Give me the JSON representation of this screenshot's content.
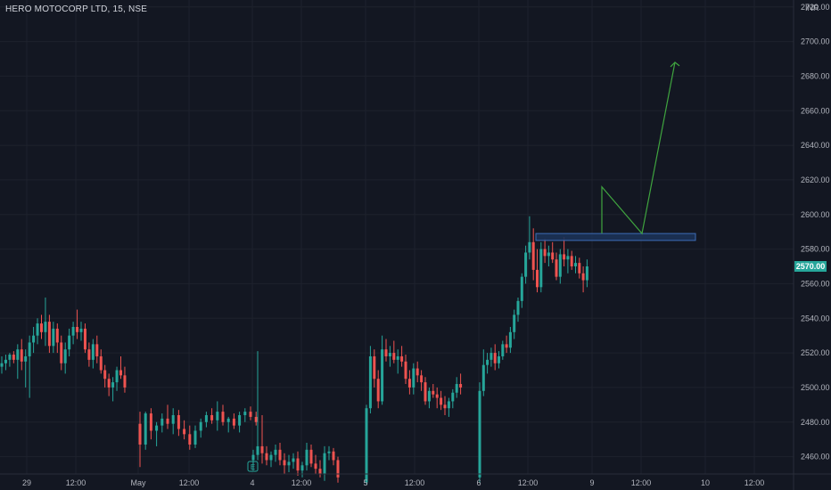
{
  "header": {
    "title": "HERO MOTOCORP LTD, 15, NSE"
  },
  "price_axis": {
    "currency": "INR",
    "ticks": [
      "2720.00",
      "2700.00",
      "2680.00",
      "2660.00",
      "2640.00",
      "2620.00",
      "2600.00",
      "2580.00",
      "2560.00",
      "2540.00",
      "2520.00",
      "2500.00",
      "2480.00",
      "2460.00"
    ],
    "last_price_label": "2570.00",
    "last_price": 2570
  },
  "time_axis": {
    "ticks": [
      "29",
      "12:00",
      "May",
      "12:00",
      "4",
      "12:00",
      "5",
      "12:00",
      "6",
      "12:00",
      "9",
      "12:00",
      "10",
      "12:00"
    ]
  },
  "event_marker": {
    "label": "E"
  },
  "colors": {
    "background": "#131722",
    "up": "#26a69a",
    "down": "#ef5350",
    "grid": "#1e222d",
    "projection": "#3fa43f",
    "zone_fill": "#1c3257",
    "zone_stroke": "#3c6cb7",
    "axis_text": "#b2b5be",
    "last_price_bg": "#26a69a"
  },
  "chart_data": {
    "type": "candlestick",
    "ylim": [
      2450,
      2724
    ],
    "grid": true,
    "candles": [
      {
        "o": 2512,
        "h": 2518,
        "l": 2508,
        "c": 2514
      },
      {
        "o": 2514,
        "h": 2519,
        "l": 2510,
        "c": 2516
      },
      {
        "o": 2516,
        "h": 2520,
        "l": 2512,
        "c": 2519
      },
      {
        "o": 2519,
        "h": 2521,
        "l": 2514,
        "c": 2516
      },
      {
        "o": 2516,
        "h": 2525,
        "l": 2505,
        "c": 2522
      },
      {
        "o": 2522,
        "h": 2528,
        "l": 2510,
        "c": 2515
      },
      {
        "o": 2515,
        "h": 2522,
        "l": 2500,
        "c": 2518
      },
      {
        "o": 2518,
        "h": 2530,
        "l": 2494,
        "c": 2526
      },
      {
        "o": 2526,
        "h": 2535,
        "l": 2520,
        "c": 2530
      },
      {
        "o": 2530,
        "h": 2540,
        "l": 2525,
        "c": 2537
      },
      {
        "o": 2537,
        "h": 2542,
        "l": 2528,
        "c": 2532
      },
      {
        "o": 2532,
        "h": 2552,
        "l": 2524,
        "c": 2538
      },
      {
        "o": 2538,
        "h": 2542,
        "l": 2520,
        "c": 2524
      },
      {
        "o": 2524,
        "h": 2538,
        "l": 2520,
        "c": 2534
      },
      {
        "o": 2534,
        "h": 2537,
        "l": 2520,
        "c": 2526
      },
      {
        "o": 2526,
        "h": 2530,
        "l": 2510,
        "c": 2514
      },
      {
        "o": 2514,
        "h": 2526,
        "l": 2508,
        "c": 2522
      },
      {
        "o": 2522,
        "h": 2534,
        "l": 2518,
        "c": 2530
      },
      {
        "o": 2530,
        "h": 2538,
        "l": 2525,
        "c": 2535
      },
      {
        "o": 2535,
        "h": 2545,
        "l": 2528,
        "c": 2532
      },
      {
        "o": 2532,
        "h": 2538,
        "l": 2527,
        "c": 2534
      },
      {
        "o": 2534,
        "h": 2537,
        "l": 2520,
        "c": 2522
      },
      {
        "o": 2522,
        "h": 2526,
        "l": 2512,
        "c": 2516
      },
      {
        "o": 2516,
        "h": 2528,
        "l": 2511,
        "c": 2525
      },
      {
        "o": 2525,
        "h": 2530,
        "l": 2514,
        "c": 2518
      },
      {
        "o": 2518,
        "h": 2522,
        "l": 2508,
        "c": 2510
      },
      {
        "o": 2510,
        "h": 2513,
        "l": 2500,
        "c": 2505
      },
      {
        "o": 2505,
        "h": 2508,
        "l": 2495,
        "c": 2500
      },
      {
        "o": 2500,
        "h": 2506,
        "l": 2492,
        "c": 2503
      },
      {
        "o": 2503,
        "h": 2512,
        "l": 2498,
        "c": 2510
      },
      {
        "o": 2510,
        "h": 2518,
        "l": 2505,
        "c": 2507
      },
      {
        "o": 2507,
        "h": 2512,
        "l": 2497,
        "c": 2500
      },
      {
        "o": 2479,
        "h": 2486,
        "l": 2454,
        "c": 2467
      },
      {
        "o": 2467,
        "h": 2486,
        "l": 2464,
        "c": 2485
      },
      {
        "o": 2485,
        "h": 2488,
        "l": 2470,
        "c": 2475
      },
      {
        "o": 2475,
        "h": 2480,
        "l": 2466,
        "c": 2478
      },
      {
        "o": 2478,
        "h": 2485,
        "l": 2474,
        "c": 2482
      },
      {
        "o": 2482,
        "h": 2490,
        "l": 2476,
        "c": 2479
      },
      {
        "o": 2479,
        "h": 2488,
        "l": 2473,
        "c": 2484
      },
      {
        "o": 2484,
        "h": 2487,
        "l": 2472,
        "c": 2476
      },
      {
        "o": 2476,
        "h": 2481,
        "l": 2470,
        "c": 2473
      },
      {
        "o": 2473,
        "h": 2478,
        "l": 2464,
        "c": 2467
      },
      {
        "o": 2467,
        "h": 2478,
        "l": 2465,
        "c": 2475
      },
      {
        "o": 2475,
        "h": 2482,
        "l": 2471,
        "c": 2480
      },
      {
        "o": 2480,
        "h": 2486,
        "l": 2477,
        "c": 2484
      },
      {
        "o": 2484,
        "h": 2488,
        "l": 2479,
        "c": 2481
      },
      {
        "o": 2481,
        "h": 2492,
        "l": 2475,
        "c": 2486
      },
      {
        "o": 2486,
        "h": 2490,
        "l": 2478,
        "c": 2480
      },
      {
        "o": 2480,
        "h": 2483,
        "l": 2474,
        "c": 2482
      },
      {
        "o": 2482,
        "h": 2485,
        "l": 2476,
        "c": 2478
      },
      {
        "o": 2478,
        "h": 2486,
        "l": 2474,
        "c": 2484
      },
      {
        "o": 2484,
        "h": 2488,
        "l": 2480,
        "c": 2486
      },
      {
        "o": 2486,
        "h": 2489,
        "l": 2481,
        "c": 2483
      },
      {
        "o": 2483,
        "h": 2486,
        "l": 2478,
        "c": 2480
      },
      {
        "o": 2458,
        "h": 2464,
        "l": 2452,
        "c": 2461
      },
      {
        "o": 2461,
        "h": 2521,
        "l": 2458,
        "c": 2466
      },
      {
        "o": 2466,
        "h": 2484,
        "l": 2456,
        "c": 2462
      },
      {
        "o": 2462,
        "h": 2466,
        "l": 2455,
        "c": 2458
      },
      {
        "o": 2458,
        "h": 2463,
        "l": 2454,
        "c": 2461
      },
      {
        "o": 2461,
        "h": 2467,
        "l": 2457,
        "c": 2464
      },
      {
        "o": 2464,
        "h": 2468,
        "l": 2455,
        "c": 2458
      },
      {
        "o": 2458,
        "h": 2462,
        "l": 2450,
        "c": 2455
      },
      {
        "o": 2455,
        "h": 2461,
        "l": 2451,
        "c": 2457
      },
      {
        "o": 2457,
        "h": 2462,
        "l": 2453,
        "c": 2459
      },
      {
        "o": 2459,
        "h": 2463,
        "l": 2449,
        "c": 2452
      },
      {
        "o": 2452,
        "h": 2457,
        "l": 2448,
        "c": 2455
      },
      {
        "o": 2455,
        "h": 2468,
        "l": 2452,
        "c": 2464
      },
      {
        "o": 2464,
        "h": 2467,
        "l": 2454,
        "c": 2456
      },
      {
        "o": 2456,
        "h": 2461,
        "l": 2450,
        "c": 2453
      },
      {
        "o": 2453,
        "h": 2458,
        "l": 2448,
        "c": 2450
      },
      {
        "o": 2450,
        "h": 2466,
        "l": 2446,
        "c": 2462
      },
      {
        "o": 2462,
        "h": 2466,
        "l": 2458,
        "c": 2463
      },
      {
        "o": 2463,
        "h": 2465,
        "l": 2455,
        "c": 2458
      },
      {
        "o": 2458,
        "h": 2460,
        "l": 2445,
        "c": 2448
      },
      {
        "o": 2445,
        "h": 2490,
        "l": 2444,
        "c": 2488
      },
      {
        "o": 2488,
        "h": 2524,
        "l": 2485,
        "c": 2518
      },
      {
        "o": 2518,
        "h": 2522,
        "l": 2500,
        "c": 2505
      },
      {
        "o": 2505,
        "h": 2510,
        "l": 2488,
        "c": 2492
      },
      {
        "o": 2492,
        "h": 2530,
        "l": 2490,
        "c": 2522
      },
      {
        "o": 2522,
        "h": 2528,
        "l": 2515,
        "c": 2518
      },
      {
        "o": 2518,
        "h": 2524,
        "l": 2512,
        "c": 2520
      },
      {
        "o": 2520,
        "h": 2527,
        "l": 2514,
        "c": 2516
      },
      {
        "o": 2516,
        "h": 2522,
        "l": 2508,
        "c": 2518
      },
      {
        "o": 2518,
        "h": 2524,
        "l": 2512,
        "c": 2515
      },
      {
        "o": 2515,
        "h": 2519,
        "l": 2502,
        "c": 2505
      },
      {
        "o": 2505,
        "h": 2510,
        "l": 2496,
        "c": 2500
      },
      {
        "o": 2500,
        "h": 2514,
        "l": 2496,
        "c": 2511
      },
      {
        "o": 2511,
        "h": 2515,
        "l": 2503,
        "c": 2507
      },
      {
        "o": 2507,
        "h": 2510,
        "l": 2498,
        "c": 2503
      },
      {
        "o": 2503,
        "h": 2506,
        "l": 2490,
        "c": 2492
      },
      {
        "o": 2492,
        "h": 2500,
        "l": 2488,
        "c": 2498
      },
      {
        "o": 2498,
        "h": 2502,
        "l": 2494,
        "c": 2496
      },
      {
        "o": 2496,
        "h": 2500,
        "l": 2488,
        "c": 2494
      },
      {
        "o": 2494,
        "h": 2498,
        "l": 2487,
        "c": 2490
      },
      {
        "o": 2490,
        "h": 2495,
        "l": 2484,
        "c": 2488
      },
      {
        "o": 2488,
        "h": 2494,
        "l": 2483,
        "c": 2492
      },
      {
        "o": 2492,
        "h": 2499,
        "l": 2488,
        "c": 2497
      },
      {
        "o": 2497,
        "h": 2506,
        "l": 2494,
        "c": 2502
      },
      {
        "o": 2502,
        "h": 2508,
        "l": 2496,
        "c": 2500
      },
      {
        "o": 2448,
        "h": 2503,
        "l": 2445,
        "c": 2498
      },
      {
        "o": 2498,
        "h": 2522,
        "l": 2495,
        "c": 2513
      },
      {
        "o": 2513,
        "h": 2520,
        "l": 2508,
        "c": 2516
      },
      {
        "o": 2516,
        "h": 2523,
        "l": 2512,
        "c": 2520
      },
      {
        "o": 2520,
        "h": 2525,
        "l": 2510,
        "c": 2514
      },
      {
        "o": 2514,
        "h": 2521,
        "l": 2511,
        "c": 2518
      },
      {
        "o": 2518,
        "h": 2527,
        "l": 2516,
        "c": 2525
      },
      {
        "o": 2525,
        "h": 2530,
        "l": 2520,
        "c": 2523
      },
      {
        "o": 2523,
        "h": 2535,
        "l": 2520,
        "c": 2532
      },
      {
        "o": 2532,
        "h": 2545,
        "l": 2528,
        "c": 2542
      },
      {
        "o": 2542,
        "h": 2552,
        "l": 2538,
        "c": 2550
      },
      {
        "o": 2550,
        "h": 2566,
        "l": 2546,
        "c": 2564
      },
      {
        "o": 2564,
        "h": 2582,
        "l": 2560,
        "c": 2578
      },
      {
        "o": 2578,
        "h": 2599,
        "l": 2574,
        "c": 2584
      },
      {
        "o": 2584,
        "h": 2592,
        "l": 2562,
        "c": 2568
      },
      {
        "o": 2568,
        "h": 2580,
        "l": 2555,
        "c": 2558
      },
      {
        "o": 2558,
        "h": 2584,
        "l": 2555,
        "c": 2580
      },
      {
        "o": 2580,
        "h": 2586,
        "l": 2572,
        "c": 2576
      },
      {
        "o": 2576,
        "h": 2582,
        "l": 2570,
        "c": 2578
      },
      {
        "o": 2578,
        "h": 2584,
        "l": 2572,
        "c": 2574
      },
      {
        "o": 2574,
        "h": 2578,
        "l": 2562,
        "c": 2564
      },
      {
        "o": 2564,
        "h": 2580,
        "l": 2560,
        "c": 2577
      },
      {
        "o": 2577,
        "h": 2587,
        "l": 2570,
        "c": 2574
      },
      {
        "o": 2574,
        "h": 2580,
        "l": 2566,
        "c": 2576
      },
      {
        "o": 2576,
        "h": 2579,
        "l": 2568,
        "c": 2570
      },
      {
        "o": 2570,
        "h": 2576,
        "l": 2566,
        "c": 2572
      },
      {
        "o": 2572,
        "h": 2575,
        "l": 2563,
        "c": 2566
      },
      {
        "o": 2566,
        "h": 2570,
        "l": 2555,
        "c": 2562
      },
      {
        "o": 2562,
        "h": 2574,
        "l": 2558,
        "c": 2570
      }
    ],
    "resistance_zone": {
      "from": 2585,
      "to": 2589
    },
    "projection_path": [
      2589,
      2616,
      2589,
      2688
    ]
  }
}
